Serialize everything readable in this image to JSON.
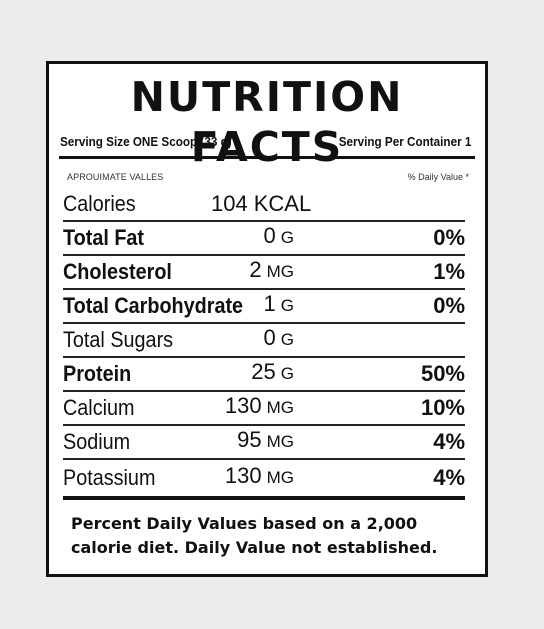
{
  "title": "NUTRITION FACTS",
  "serving": {
    "size_text": "Serving Size ONE Scoop (33 g)",
    "per_container_text": "Serving Per Container 1"
  },
  "subheader": {
    "approx_text": "APROUIMATE VALLES",
    "daily_value_header": "% Daily Value *"
  },
  "calories": {
    "label": "Calories",
    "value": "104",
    "unit": "KCAL"
  },
  "nutrients": [
    {
      "name": "Total Fat",
      "amount": "0",
      "unit": "G",
      "dv": "0%",
      "bold": true
    },
    {
      "name": "Cholesterol",
      "amount": "2",
      "unit": "MG",
      "dv": "1%",
      "bold": true
    },
    {
      "name": "Total Carbohydrate",
      "amount": "1",
      "unit": "G",
      "dv": "0%",
      "bold": true
    },
    {
      "name": "Total Sugars",
      "amount": "0",
      "unit": "G",
      "dv": "",
      "bold": false
    },
    {
      "name": "Protein",
      "amount": "25",
      "unit": "G",
      "dv": "50%",
      "bold": true
    },
    {
      "name": "Calcium",
      "amount": "130",
      "unit": "MG",
      "dv": "10%",
      "bold": false
    },
    {
      "name": "Sodium",
      "amount": "95",
      "unit": "MG",
      "dv": "4%",
      "bold": false
    },
    {
      "name": "Potassium",
      "amount": "130",
      "unit": "MG",
      "dv": "4%",
      "bold": false
    }
  ],
  "footnote": {
    "line1": "Percent Daily Values based on a 2,000",
    "line2": "calorie diet. Daily Value not established."
  },
  "colors": {
    "background": "#ececec",
    "label_background": "#ffffff",
    "ink": "#111111"
  }
}
